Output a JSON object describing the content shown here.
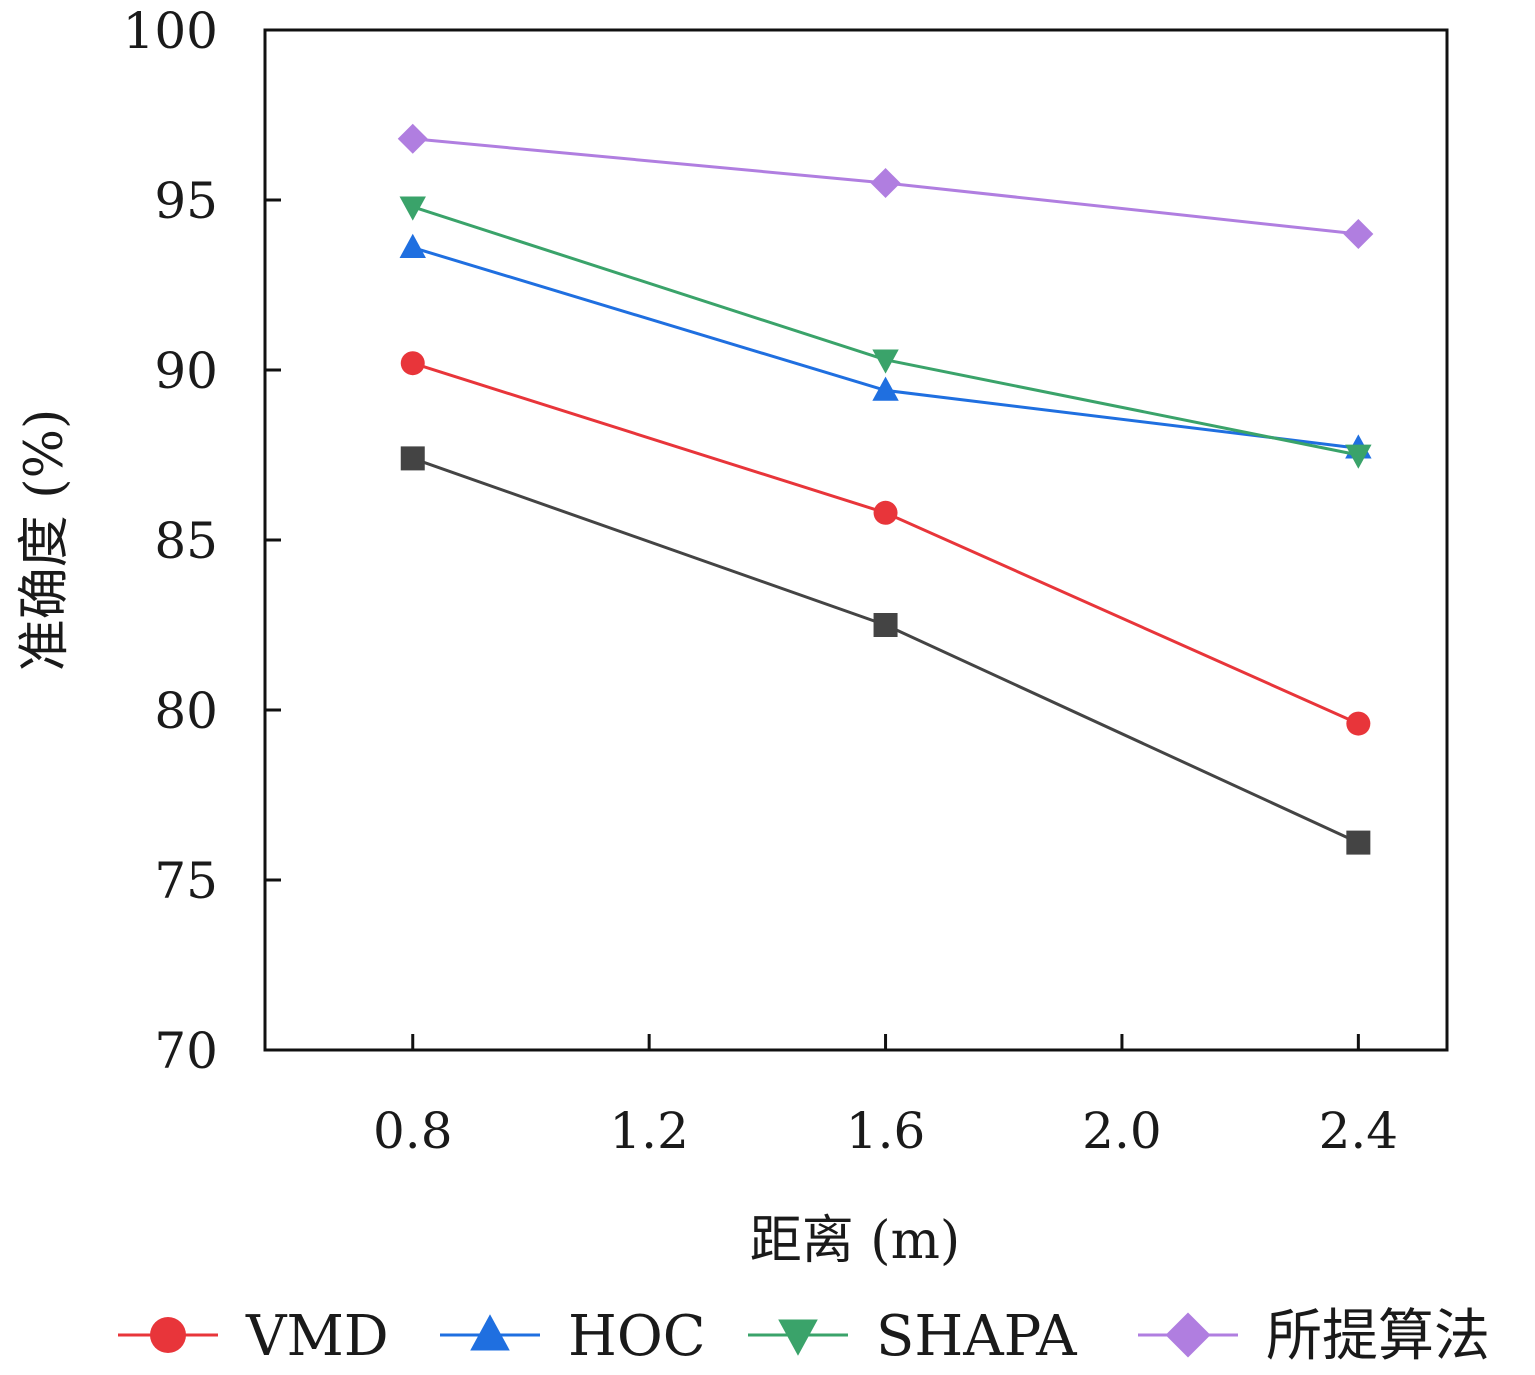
{
  "chart_data": {
    "type": "line",
    "title": "",
    "xlabel": "距离 (m)",
    "ylabel": "准确度 (%)",
    "xlim": [
      0.55,
      2.55
    ],
    "ylim": [
      70,
      100
    ],
    "xticks": [
      0.8,
      1.2,
      1.6,
      2.0,
      2.4
    ],
    "xtick_labels": [
      "0.8",
      "1.2",
      "1.6",
      "2.0",
      "2.4"
    ],
    "yticks": [
      70,
      75,
      80,
      85,
      90,
      95,
      100
    ],
    "ytick_labels": [
      "70",
      "75",
      "80",
      "85",
      "90",
      "95",
      "100"
    ],
    "grid": false,
    "legend_position": "bottom",
    "x": [
      0.8,
      1.6,
      2.4
    ],
    "series": [
      {
        "name": "",
        "color": "#444444",
        "marker": "square",
        "values": [
          87.4,
          82.5,
          76.1
        ],
        "in_legend": false
      },
      {
        "name": "VMD",
        "color": "#e8353a",
        "marker": "circle",
        "values": [
          90.2,
          85.8,
          79.6
        ],
        "in_legend": true
      },
      {
        "name": "HOC",
        "color": "#1f6fe0",
        "marker": "triangle-up",
        "values": [
          93.6,
          89.4,
          87.7
        ],
        "in_legend": true
      },
      {
        "name": "SHAPA",
        "color": "#3aa36a",
        "marker": "triangle-down",
        "values": [
          94.8,
          90.3,
          87.5
        ],
        "in_legend": true
      },
      {
        "name": "所提算法",
        "color": "#b07ee0",
        "marker": "diamond",
        "values": [
          96.8,
          95.5,
          94.0
        ],
        "in_legend": true
      }
    ]
  }
}
